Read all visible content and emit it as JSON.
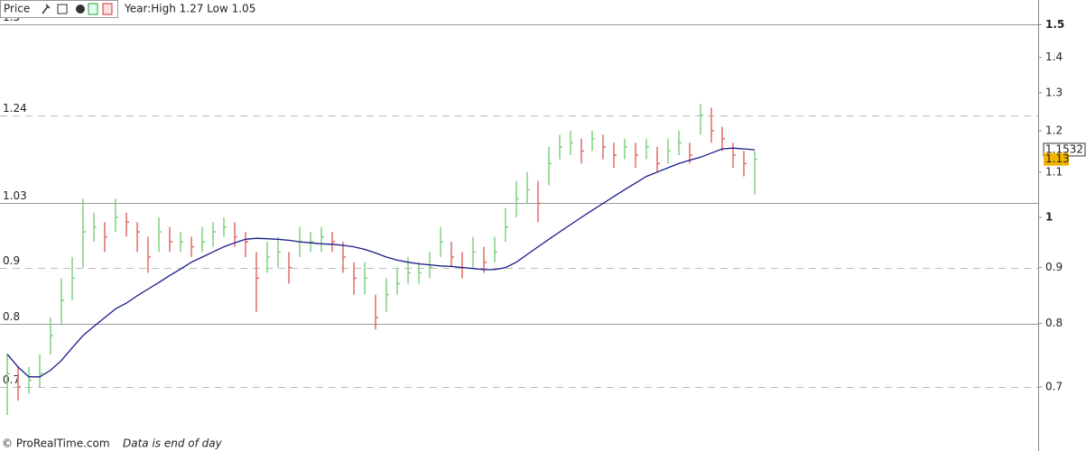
{
  "header": {
    "label": "Price",
    "range_text": "Year:High 1.27 Low 1.05"
  },
  "chart_data": {
    "type": "hlc",
    "high": [
      0.75,
      0.73,
      0.73,
      0.75,
      0.81,
      0.88,
      0.92,
      1.04,
      1.01,
      0.99,
      1.04,
      1.01,
      0.99,
      0.96,
      1.0,
      0.98,
      0.97,
      0.96,
      0.98,
      0.99,
      1.0,
      0.99,
      0.97,
      0.93,
      0.95,
      0.96,
      0.93,
      0.98,
      0.97,
      0.98,
      0.97,
      0.95,
      0.91,
      0.91,
      0.85,
      0.88,
      0.9,
      0.92,
      0.91,
      0.93,
      0.98,
      0.95,
      0.93,
      0.96,
      0.94,
      0.96,
      1.02,
      1.08,
      1.1,
      1.08,
      1.16,
      1.19,
      1.2,
      1.18,
      1.2,
      1.19,
      1.17,
      1.18,
      1.17,
      1.18,
      1.16,
      1.18,
      1.2,
      1.17,
      1.27,
      1.26,
      1.21,
      1.17,
      1.15,
      1.15
    ],
    "low": [
      0.66,
      0.68,
      0.69,
      0.7,
      0.75,
      0.8,
      0.84,
      0.9,
      0.95,
      0.93,
      0.97,
      0.96,
      0.93,
      0.89,
      0.93,
      0.93,
      0.93,
      0.92,
      0.93,
      0.94,
      0.96,
      0.94,
      0.92,
      0.82,
      0.89,
      0.9,
      0.87,
      0.92,
      0.93,
      0.93,
      0.93,
      0.89,
      0.85,
      0.85,
      0.79,
      0.82,
      0.85,
      0.87,
      0.87,
      0.88,
      0.92,
      0.9,
      0.88,
      0.9,
      0.89,
      0.91,
      0.95,
      1.0,
      1.03,
      0.99,
      1.07,
      1.13,
      1.14,
      1.12,
      1.15,
      1.13,
      1.11,
      1.13,
      1.11,
      1.13,
      1.1,
      1.12,
      1.14,
      1.12,
      1.19,
      1.17,
      1.15,
      1.11,
      1.09,
      1.05
    ],
    "close": [
      0.72,
      0.7,
      0.71,
      0.72,
      0.78,
      0.84,
      0.88,
      0.97,
      0.98,
      0.96,
      1.0,
      0.99,
      0.97,
      0.92,
      0.97,
      0.95,
      0.95,
      0.94,
      0.95,
      0.97,
      0.98,
      0.96,
      0.95,
      0.88,
      0.92,
      0.93,
      0.9,
      0.95,
      0.95,
      0.96,
      0.95,
      0.92,
      0.88,
      0.88,
      0.81,
      0.85,
      0.87,
      0.89,
      0.89,
      0.9,
      0.95,
      0.92,
      0.9,
      0.93,
      0.91,
      0.93,
      0.98,
      1.04,
      1.06,
      1.03,
      1.12,
      1.16,
      1.17,
      1.15,
      1.18,
      1.16,
      1.14,
      1.16,
      1.14,
      1.16,
      1.12,
      1.15,
      1.17,
      1.14,
      1.24,
      1.2,
      1.18,
      1.14,
      1.12,
      1.13
    ],
    "up_color": "#7fd17f",
    "down_color": "#e06a6a",
    "series": [
      {
        "color": "#1a1a8c",
        "values": [
          0.75,
          0.73,
          0.715,
          0.715,
          0.725,
          0.74,
          0.76,
          0.78,
          0.795,
          0.81,
          0.825,
          0.835,
          0.848,
          0.86,
          0.872,
          0.885,
          0.897,
          0.91,
          0.92,
          0.93,
          0.94,
          0.948,
          0.955,
          0.957,
          0.956,
          0.955,
          0.953,
          0.95,
          0.948,
          0.946,
          0.945,
          0.943,
          0.94,
          0.935,
          0.928,
          0.92,
          0.914,
          0.91,
          0.907,
          0.905,
          0.903,
          0.902,
          0.9,
          0.898,
          0.896,
          0.896,
          0.9,
          0.91,
          0.925,
          0.94,
          0.955,
          0.97,
          0.985,
          1.0,
          1.015,
          1.03,
          1.045,
          1.06,
          1.075,
          1.09,
          1.1,
          1.11,
          1.12,
          1.128,
          1.135,
          1.145,
          1.155,
          1.157,
          1.155,
          1.153
        ]
      }
    ],
    "last_ma": 1.1532,
    "last_close": 1.13,
    "last_close_color": "#f0b400",
    "levels": [
      {
        "value": 1.5,
        "style": "solid"
      },
      {
        "value": 1.24,
        "style": "dashed"
      },
      {
        "value": 1.03,
        "style": "solid"
      },
      {
        "value": 0.9,
        "style": "dashed"
      },
      {
        "value": 0.8,
        "style": "solid"
      },
      {
        "value": 0.7,
        "style": "dashed"
      }
    ],
    "ylim": [
      0.633,
      1.58
    ],
    "log_scale": true,
    "yticks": [
      1.5,
      1.4,
      1.3,
      1.2,
      1.1,
      1,
      0.9,
      0.8,
      0.7
    ],
    "yticks_bold": [
      1.5,
      1
    ]
  },
  "footer": {
    "source": "© ProRealTime.com",
    "note": "Data is end of day"
  }
}
